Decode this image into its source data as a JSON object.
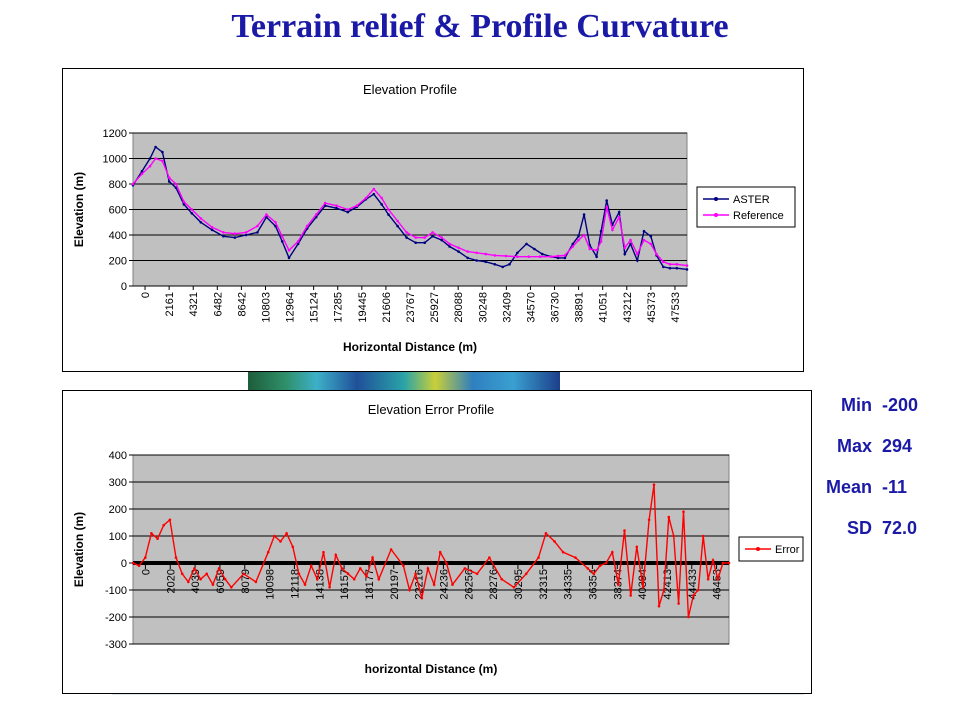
{
  "page": {
    "title": "Terrain relief & Profile Curvature"
  },
  "stats": [
    {
      "label": "Min",
      "value": "-200"
    },
    {
      "label": "Max",
      "value": "294"
    },
    {
      "label": "Mean",
      "value": "-11"
    },
    {
      "label": "SD",
      "value": "72.0"
    }
  ],
  "chart_data": [
    {
      "type": "line",
      "title": "Elevation Profile",
      "xlabel": "Horizontal Distance (m)",
      "ylabel": "Elevation (m)",
      "ylim": [
        0,
        1200
      ],
      "yticks": [
        "0",
        "200",
        "400",
        "600",
        "800",
        "1000",
        "1200"
      ],
      "xlim": [
        0,
        49000
      ],
      "xticks": [
        "0",
        "2161",
        "4321",
        "6482",
        "8642",
        "10803",
        "12964",
        "15124",
        "17285",
        "19445",
        "21606",
        "23767",
        "25927",
        "28088",
        "30248",
        "32409",
        "34570",
        "36730",
        "38891",
        "41051",
        "43212",
        "45373",
        "47533"
      ],
      "grid": true,
      "legend": "right",
      "series": [
        {
          "name": "ASTER",
          "color": "#00007f",
          "x": [
            0,
            800,
            1500,
            2000,
            2600,
            3200,
            3800,
            4500,
            5200,
            6000,
            7000,
            8000,
            9000,
            10000,
            11000,
            11800,
            12600,
            13200,
            13800,
            14600,
            15400,
            16200,
            17000,
            18000,
            19000,
            19800,
            20600,
            21300,
            22000,
            22600,
            23400,
            24200,
            25000,
            25800,
            26500,
            27300,
            28000,
            28800,
            29600,
            30400,
            31200,
            32000,
            32700,
            33300,
            34000,
            34800,
            35500,
            36200,
            37000,
            37600,
            38200,
            38900,
            39400,
            39900,
            40400,
            41000,
            41400,
            41900,
            42400,
            43000,
            43500,
            44000,
            44600,
            45200,
            45800,
            46300,
            46900,
            47500,
            48100,
            49000
          ],
          "values": [
            790,
            900,
            1000,
            1090,
            1050,
            820,
            770,
            640,
            570,
            500,
            440,
            390,
            380,
            400,
            420,
            540,
            470,
            350,
            220,
            330,
            450,
            540,
            630,
            610,
            580,
            620,
            680,
            720,
            640,
            560,
            470,
            380,
            340,
            340,
            390,
            360,
            310,
            270,
            220,
            200,
            190,
            170,
            150,
            170,
            260,
            330,
            290,
            250,
            230,
            220,
            220,
            330,
            390,
            560,
            320,
            230,
            430,
            670,
            480,
            580,
            250,
            330,
            200,
            430,
            390,
            240,
            150,
            140,
            140,
            130
          ]
        },
        {
          "name": "Reference",
          "color": "#ff00ff",
          "x": [
            0,
            800,
            1500,
            2000,
            2600,
            3200,
            3800,
            4500,
            5200,
            6000,
            7000,
            8000,
            9000,
            10000,
            11000,
            11800,
            12600,
            13200,
            13800,
            14600,
            15400,
            16200,
            17000,
            18000,
            19000,
            19800,
            20600,
            21300,
            22000,
            22600,
            23400,
            24200,
            25000,
            25800,
            26500,
            27300,
            28000,
            28800,
            29600,
            30400,
            31200,
            32000,
            33000,
            34000,
            35000,
            36000,
            37000,
            37600,
            38200,
            38900,
            39400,
            39900,
            40400,
            41000,
            41400,
            41900,
            42400,
            43000,
            43500,
            44000,
            44600,
            45200,
            45800,
            46300,
            46900,
            47500,
            48100,
            49000
          ],
          "values": [
            800,
            880,
            940,
            1000,
            980,
            850,
            800,
            660,
            600,
            530,
            460,
            420,
            410,
            420,
            470,
            560,
            500,
            390,
            280,
            350,
            470,
            560,
            650,
            630,
            600,
            630,
            690,
            760,
            690,
            600,
            510,
            420,
            380,
            380,
            420,
            380,
            330,
            300,
            270,
            260,
            250,
            240,
            235,
            230,
            230,
            230,
            230,
            235,
            240,
            310,
            360,
            400,
            290,
            280,
            350,
            620,
            440,
            540,
            300,
            360,
            250,
            360,
            330,
            250,
            190,
            170,
            170,
            160
          ]
        }
      ]
    },
    {
      "type": "line",
      "title": "Elevation Error Profile",
      "xlabel": "horizontal Distance (m)",
      "ylabel": "Elevation (m)",
      "ylim": [
        -300,
        400
      ],
      "yticks": [
        "-300",
        "-200",
        "-100",
        "0",
        "100",
        "200",
        "300",
        "400"
      ],
      "xlim": [
        0,
        48500
      ],
      "xticks": [
        "0",
        "2020",
        "4039",
        "6059",
        "8079",
        "10098",
        "12118",
        "14138",
        "16157",
        "18177",
        "20197",
        "22216",
        "24236",
        "26256",
        "28276",
        "30295",
        "32315",
        "34335",
        "36354",
        "38374",
        "40394",
        "42413",
        "44433",
        "46453"
      ],
      "grid": true,
      "legend": "right",
      "series": [
        {
          "name": "Error",
          "color": "#ff0000",
          "x": [
            0,
            500,
            1000,
            1500,
            2000,
            2500,
            3000,
            3500,
            4000,
            4500,
            5000,
            5500,
            6000,
            6500,
            7000,
            7500,
            8000,
            9000,
            10000,
            11000,
            11500,
            12000,
            12500,
            13000,
            13500,
            14000,
            14500,
            15000,
            15500,
            16000,
            16500,
            17000,
            17500,
            18000,
            18500,
            19000,
            19500,
            20000,
            21000,
            22000,
            22500,
            23000,
            23500,
            24000,
            24500,
            25000,
            25500,
            26000,
            27000,
            28000,
            29000,
            30000,
            31000,
            32000,
            33000,
            33600,
            34300,
            35000,
            36000,
            37000,
            37500,
            38000,
            38500,
            39000,
            39500,
            40000,
            40500,
            41000,
            41500,
            42000,
            42400,
            42800,
            43200,
            43600,
            44000,
            44400,
            44800,
            45200,
            45600,
            46000,
            46400,
            46800,
            47200,
            47600,
            48000,
            48500
          ],
          "values": [
            0,
            -10,
            20,
            110,
            90,
            140,
            160,
            20,
            -40,
            -70,
            -20,
            -60,
            -40,
            -80,
            -20,
            -60,
            -90,
            -40,
            -70,
            40,
            100,
            80,
            110,
            60,
            -40,
            -80,
            -10,
            -60,
            40,
            -90,
            30,
            -20,
            -40,
            -60,
            -20,
            -50,
            20,
            -60,
            50,
            -10,
            -100,
            -40,
            -130,
            -20,
            -80,
            40,
            0,
            -80,
            -20,
            -40,
            20,
            -60,
            -90,
            -40,
            20,
            110,
            80,
            40,
            20,
            -20,
            -40,
            -10,
            0,
            40,
            -80,
            120,
            -120,
            60,
            -90,
            160,
            290,
            -160,
            -100,
            170,
            100,
            -150,
            190,
            -200,
            -120,
            -100,
            100,
            -60,
            10,
            -60,
            0,
            0
          ]
        }
      ]
    }
  ]
}
